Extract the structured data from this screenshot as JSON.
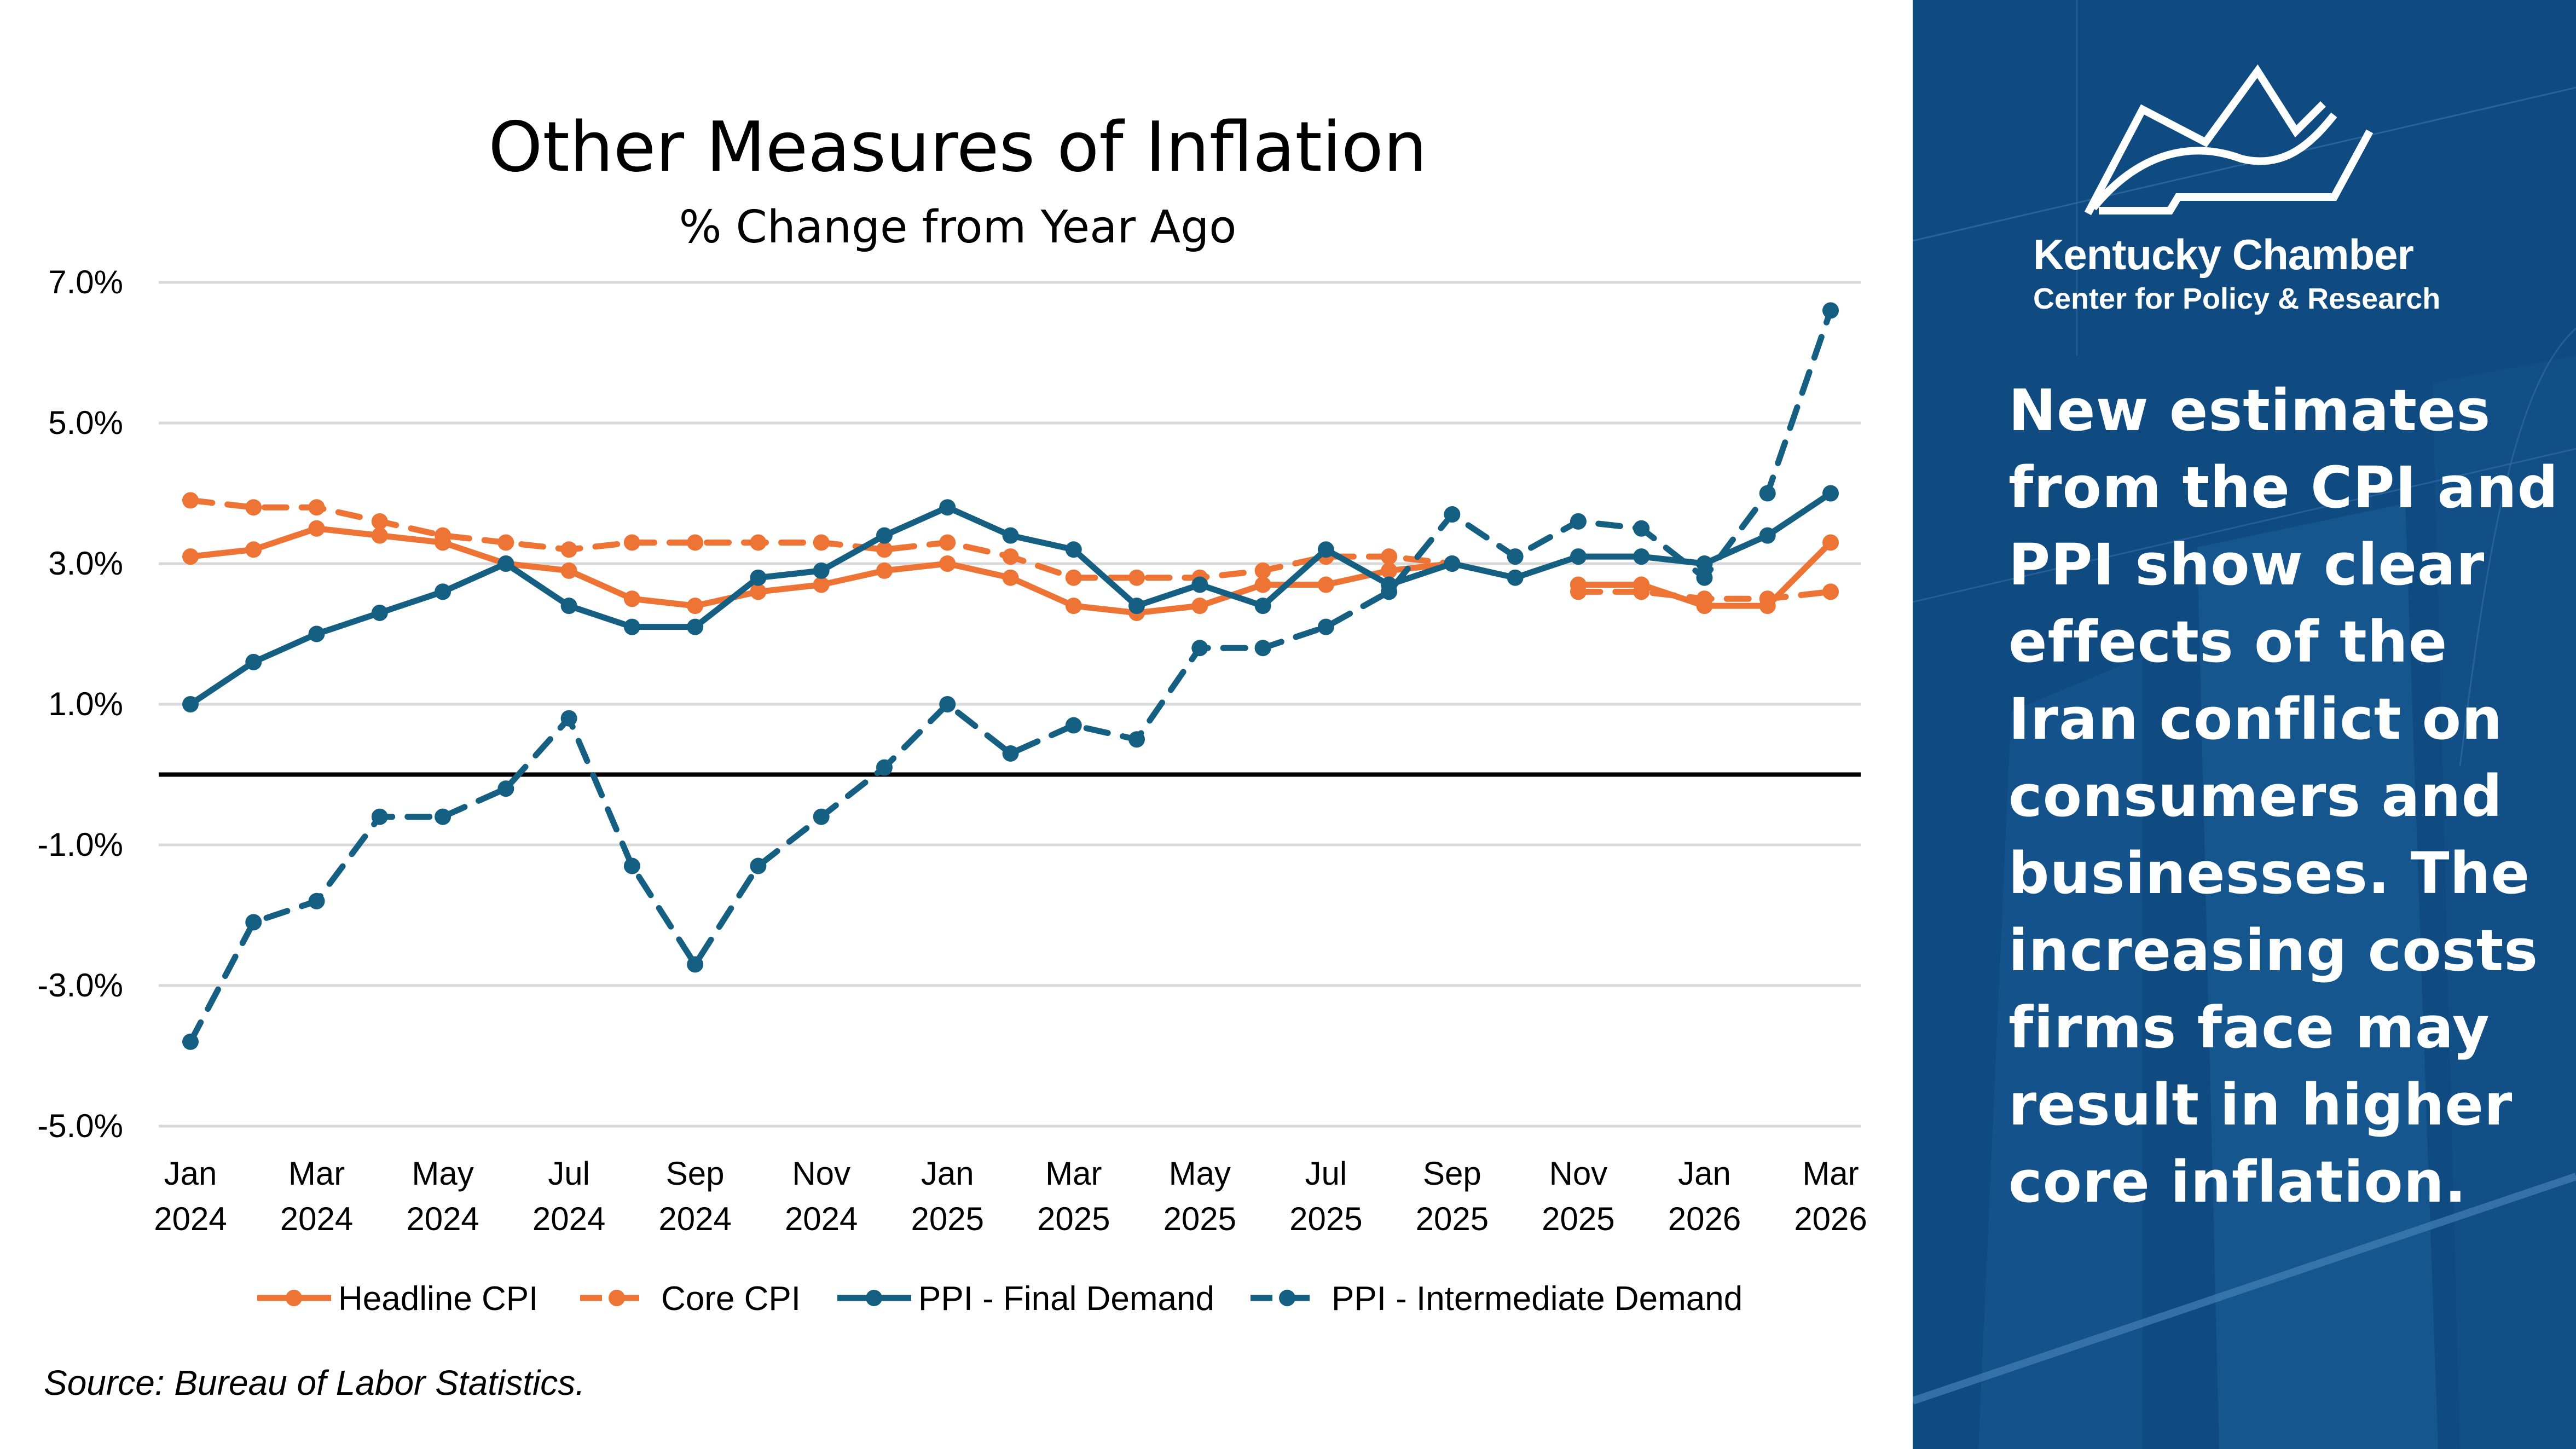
{
  "chart_data": {
    "type": "line",
    "title": "Other Measures of Inflation",
    "subtitle": "% Change from Year Ago",
    "xlabel": "",
    "ylabel": "",
    "ylim": [
      -5.0,
      7.0
    ],
    "yticks": [
      7.0,
      5.0,
      3.0,
      1.0,
      -1.0,
      -3.0,
      -5.0
    ],
    "ytick_labels": [
      "7.0%",
      "5.0%",
      "3.0%",
      "1.0%",
      "-1.0%",
      "-3.0%",
      "-5.0%"
    ],
    "zero_line": true,
    "grid": true,
    "legend_position": "bottom",
    "x": [
      "Jan 2024",
      "Feb 2024",
      "Mar 2024",
      "Apr 2024",
      "May 2024",
      "Jun 2024",
      "Jul 2024",
      "Aug 2024",
      "Sep 2024",
      "Oct 2024",
      "Nov 2024",
      "Dec 2024",
      "Jan 2025",
      "Feb 2025",
      "Mar 2025",
      "Apr 2025",
      "May 2025",
      "Jun 2025",
      "Jul 2025",
      "Aug 2025",
      "Sep 2025",
      "Oct 2025",
      "Nov 2025",
      "Dec 2025",
      "Jan 2026",
      "Feb 2026",
      "Mar 2026"
    ],
    "xtick_labels": [
      {
        "index": 0,
        "month": "Jan",
        "year": "2024"
      },
      {
        "index": 2,
        "month": "Mar",
        "year": "2024"
      },
      {
        "index": 4,
        "month": "May",
        "year": "2024"
      },
      {
        "index": 6,
        "month": "Jul",
        "year": "2024"
      },
      {
        "index": 8,
        "month": "Sep",
        "year": "2024"
      },
      {
        "index": 10,
        "month": "Nov",
        "year": "2024"
      },
      {
        "index": 12,
        "month": "Jan",
        "year": "2025"
      },
      {
        "index": 14,
        "month": "Mar",
        "year": "2025"
      },
      {
        "index": 16,
        "month": "May",
        "year": "2025"
      },
      {
        "index": 18,
        "month": "Jul",
        "year": "2025"
      },
      {
        "index": 20,
        "month": "Sep",
        "year": "2025"
      },
      {
        "index": 22,
        "month": "Nov",
        "year": "2025"
      },
      {
        "index": 24,
        "month": "Jan",
        "year": "2026"
      },
      {
        "index": 26,
        "month": "Mar",
        "year": "2026"
      }
    ],
    "series": [
      {
        "name": "Headline CPI",
        "color": "#ed7434",
        "dash": false,
        "values": [
          3.1,
          3.2,
          3.5,
          3.4,
          3.3,
          3.0,
          2.9,
          2.5,
          2.4,
          2.6,
          2.7,
          2.9,
          3.0,
          2.8,
          2.4,
          2.3,
          2.4,
          2.7,
          2.7,
          2.9,
          3.0,
          null,
          2.7,
          2.7,
          2.4,
          2.4,
          3.3
        ]
      },
      {
        "name": "Core CPI",
        "color": "#ed7434",
        "dash": true,
        "values": [
          3.9,
          3.8,
          3.8,
          3.6,
          3.4,
          3.3,
          3.2,
          3.3,
          3.3,
          3.3,
          3.3,
          3.2,
          3.3,
          3.1,
          2.8,
          2.8,
          2.8,
          2.9,
          3.1,
          3.1,
          3.0,
          null,
          2.6,
          2.6,
          2.5,
          2.5,
          2.6
        ]
      },
      {
        "name": "PPI - Final Demand",
        "color": "#156082",
        "dash": false,
        "values": [
          1.0,
          1.6,
          2.0,
          2.3,
          2.6,
          3.0,
          2.4,
          2.1,
          2.1,
          2.8,
          2.9,
          3.4,
          3.8,
          3.4,
          3.2,
          2.4,
          2.7,
          2.4,
          3.2,
          2.7,
          3.0,
          2.8,
          3.1,
          3.1,
          3.0,
          3.4,
          4.0
        ]
      },
      {
        "name": "PPI - Intermediate Demand",
        "color": "#156082",
        "dash": true,
        "values": [
          -3.8,
          -2.1,
          -1.8,
          -0.6,
          -0.6,
          -0.2,
          0.8,
          -1.3,
          -2.7,
          -1.3,
          -0.6,
          0.1,
          1.0,
          0.3,
          0.7,
          0.5,
          1.8,
          1.8,
          2.1,
          2.6,
          3.7,
          3.1,
          3.6,
          3.5,
          2.8,
          4.0,
          6.6
        ]
      }
    ],
    "source": "Source: Bureau of Labor Statistics."
  },
  "side_panel": {
    "org_name": "Kentucky Chamber",
    "org_subtitle": "Center for Policy & Research",
    "logo_icon": "kentucky-chamber-logo-icon",
    "callout": "New estimates from the CPI and PPI show clear effects of the Iran conflict on consumers and businesses. The increasing costs firms face may result in higher core inflation.",
    "background_color": "#0f4b80"
  }
}
